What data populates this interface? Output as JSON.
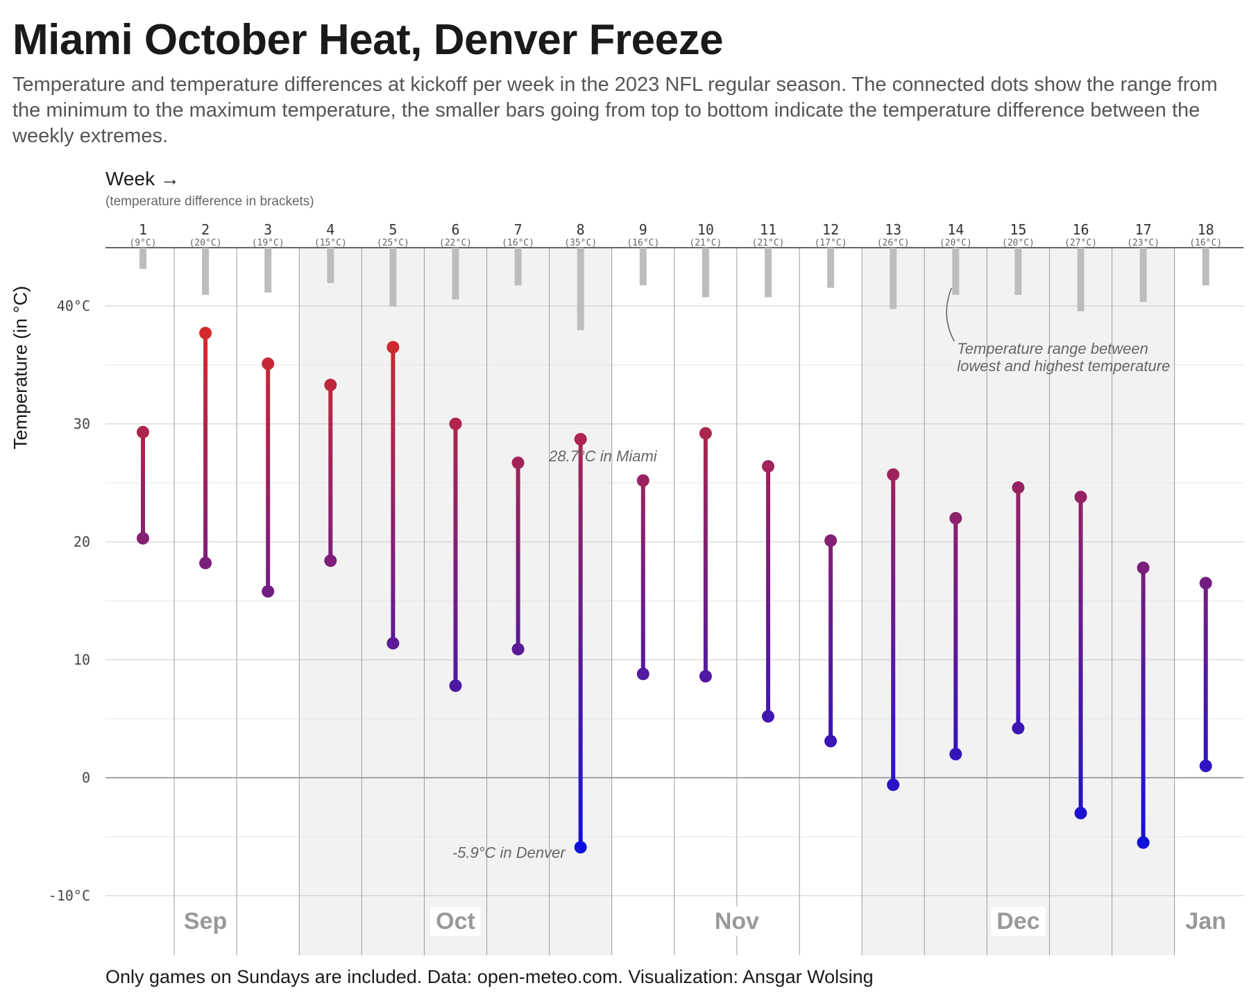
{
  "title": "Miami October Heat, Denver Freeze",
  "subtitle": "Temperature and temperature differences at kickoff per week in the 2023 NFL regular season. The connected dots show the range from the minimum to the maximum temperature, the smaller bars going from top to bottom indicate the temperature difference between the weekly extremes.",
  "week_label": "Week →",
  "week_note": "(temperature difference in brackets)",
  "ylabel": "Temperature (in °C)",
  "caption": "Only games on Sundays are included. Data: open-meteo.com. Visualization: Ansgar Wolsing",
  "colors": {
    "warm": "#d42a2a",
    "cold": "#1010dd",
    "diff_bar": "#bdbdbd",
    "shade": "#f2f2f2",
    "grid": "#d6d6d6"
  },
  "chart_data": {
    "type": "range-dot",
    "title": "Miami October Heat, Denver Freeze",
    "ylabel": "Temperature (in °C)",
    "ylim": [
      -15,
      45
    ],
    "yticks": [
      -10,
      0,
      10,
      20,
      30,
      40
    ],
    "ytick_labels": [
      "-10°C",
      "0",
      "10",
      "20",
      "30",
      "40°C"
    ],
    "weeks": [
      1,
      2,
      3,
      4,
      5,
      6,
      7,
      8,
      9,
      10,
      11,
      12,
      13,
      14,
      15,
      16,
      17,
      18
    ],
    "min": [
      20.3,
      18.2,
      15.8,
      18.4,
      11.4,
      7.8,
      10.9,
      -5.9,
      8.8,
      8.6,
      5.2,
      3.1,
      -0.6,
      2.0,
      4.2,
      -3.0,
      -5.5,
      1.0
    ],
    "max": [
      29.3,
      37.7,
      35.1,
      33.3,
      36.5,
      30.0,
      26.7,
      28.7,
      25.2,
      29.2,
      26.4,
      20.1,
      25.7,
      22.0,
      24.6,
      23.8,
      17.8,
      16.5
    ],
    "diff": [
      9,
      20,
      19,
      15,
      25,
      22,
      16,
      35,
      16,
      21,
      21,
      17,
      26,
      20,
      20,
      27,
      23,
      16
    ],
    "diff_labels": [
      "(9°C)",
      "(20°C)",
      "(19°C)",
      "(15°C)",
      "(25°C)",
      "(22°C)",
      "(16°C)",
      "(35°C)",
      "(16°C)",
      "(21°C)",
      "(21°C)",
      "(17°C)",
      "(26°C)",
      "(20°C)",
      "(20°C)",
      "(27°C)",
      "(23°C)",
      "(16°C)"
    ],
    "months": [
      {
        "label": "Sep",
        "week": 2
      },
      {
        "label": "Oct",
        "week": 6
      },
      {
        "label": "Nov",
        "week": 10.5
      },
      {
        "label": "Dec",
        "week": 15
      },
      {
        "label": "Jan",
        "week": 18
      }
    ],
    "shaded_weeks": [
      4,
      5,
      6,
      7,
      8,
      13,
      14,
      15,
      16,
      17
    ],
    "annotations": [
      {
        "text": "28.7°C in Miami",
        "week": 8,
        "value": 28.7,
        "anchor": "end"
      },
      {
        "text": "-5.9°C in Denver",
        "week": 8,
        "value": -5.9,
        "anchor": "end"
      },
      {
        "text_lines": [
          "Temperature range between",
          "lowest and highest temperature"
        ],
        "week": 14
      }
    ]
  }
}
